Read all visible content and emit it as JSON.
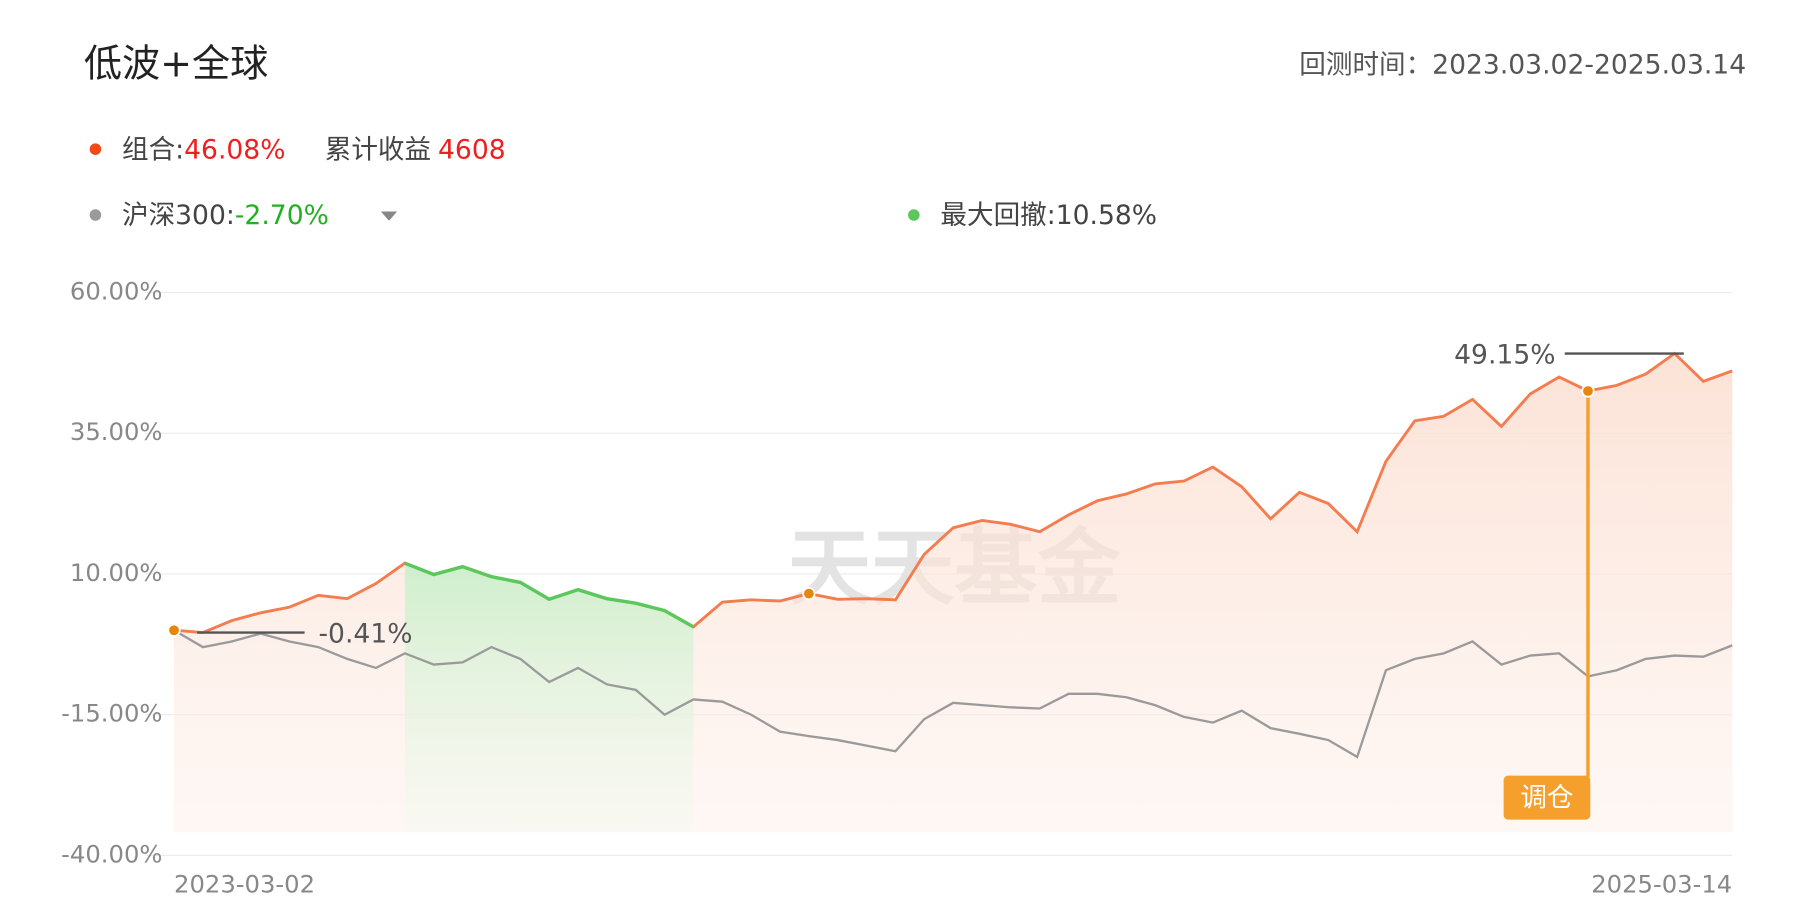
{
  "title": "低波+全球",
  "period": "回测时间：2023.03.02-2025.03.14",
  "cumulative": {
    "label": "累计收益",
    "value": 4608
  },
  "max_drawdown": {
    "label": "最大回撤:",
    "value_label": "10.58%",
    "color": "#5cc85c"
  },
  "rebalance_label": "调仓",
  "watermark": "天天基金",
  "chart_data": {
    "type": "line",
    "categories": [
      "2023-03-02",
      null,
      null,
      null,
      null,
      null,
      null,
      null,
      null,
      null,
      null,
      null,
      null,
      null,
      null,
      null,
      null,
      null,
      null,
      null,
      null,
      null,
      null,
      null,
      null,
      null,
      null,
      null,
      null,
      null,
      null,
      null,
      null,
      null,
      null,
      null,
      null,
      null,
      null,
      null,
      null,
      null,
      null,
      null,
      null,
      null,
      null,
      null,
      null,
      null,
      null,
      null,
      null,
      null,
      "2025-03-14"
    ],
    "series": [
      {
        "name": "组合:",
        "color": "#f47c4e",
        "return_label": "46.08%",
        "return_color": "#f01e1e",
        "values": [
          0,
          -0.41,
          1.7,
          3.1,
          4.1,
          6.2,
          5.6,
          8.3,
          11.9,
          9.9,
          11.3,
          9.5,
          8.5,
          5.5,
          7.2,
          5.6,
          4.8,
          3.5,
          0.6,
          5.0,
          5.4,
          5.2,
          6.5,
          5.5,
          5.6,
          5.4,
          13.5,
          18.2,
          19.5,
          18.8,
          17.5,
          20.5,
          23,
          24.2,
          26,
          26.5,
          29,
          25.5,
          19.8,
          24.5,
          22.5,
          17.5,
          30,
          37.2,
          38,
          41,
          36.2,
          42,
          45,
          42.5,
          43.5,
          45.5,
          49.15,
          44.2,
          46.08
        ],
        "value_labels": [
          null,
          "-0.41%",
          null,
          null,
          null,
          null,
          null,
          null,
          null,
          null,
          null,
          null,
          null,
          null,
          null,
          null,
          null,
          null,
          null,
          null,
          null,
          null,
          null,
          null,
          null,
          null,
          null,
          null,
          null,
          null,
          null,
          null,
          null,
          null,
          null,
          null,
          null,
          null,
          null,
          null,
          null,
          null,
          null,
          null,
          null,
          null,
          null,
          null,
          null,
          null,
          null,
          null,
          "49.15%",
          null,
          null
        ]
      },
      {
        "name": "沪深300:",
        "color": "#9a9a9a",
        "return_label": "-2.70%",
        "return_color": "#22b022",
        "values": [
          0,
          -3,
          -2,
          -0.6,
          -2,
          -3,
          -5.1,
          -6.7,
          -4.1,
          -6.1,
          -5.7,
          -3,
          -5.1,
          -9.2,
          -6.7,
          -9.6,
          -10.6,
          -15,
          -12.3,
          -12.7,
          -15,
          -18,
          -18.8,
          -19.5,
          -20.5,
          -21.5,
          -15.8,
          -12.9,
          -13.3,
          -13.7,
          -13.9,
          -11.3,
          -11.3,
          -11.9,
          -13.3,
          -15.4,
          -16.4,
          -14.3,
          -17.4,
          -18.4,
          -19.5,
          -22.5,
          -7.1,
          -5.1,
          -4.1,
          -2,
          -6.1,
          -4.5,
          -4.1,
          -8.2,
          -7.1,
          -5.1,
          -4.5,
          -4.7,
          -2.7
        ]
      }
    ],
    "ylim": [
      -40,
      60
    ],
    "yticks": [
      {
        "value": -40,
        "label": "-40.00%"
      },
      {
        "value": -15,
        "label": "-15.00%"
      },
      {
        "value": 10,
        "label": "10.00%"
      },
      {
        "value": 35,
        "label": "35.00%"
      },
      {
        "value": 60,
        "label": "60.00%"
      }
    ],
    "grid": true
  }
}
